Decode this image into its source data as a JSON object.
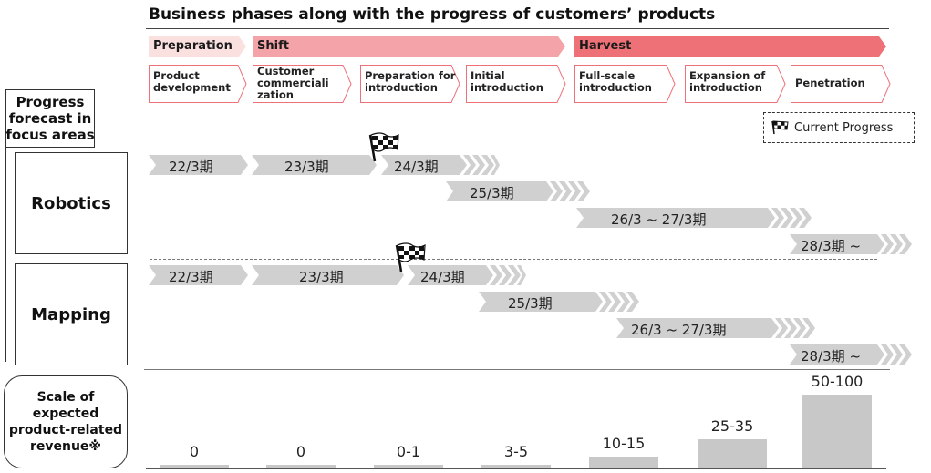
{
  "title": "Business phases along with the progress of customers’ products",
  "phases": {
    "preparation": "Preparation",
    "shift": "Shift",
    "harvest": "Harvest"
  },
  "steps": [
    "Product\ndevelopment",
    "Customer\ncommerciali\nzation",
    "Preparation for\nintroduction",
    "Initial\nintroduction",
    "Full-scale\nintroduction",
    "Expansion of\nintroduction",
    "Penetration"
  ],
  "legend": {
    "label": "Current Progress",
    "icon": "checkered-flag-icon"
  },
  "left": {
    "forecast_label": "Progress\nforecast in\nfocus areas",
    "robotics": "Robotics",
    "mapping": "Mapping",
    "revenue_label": "Scale of\nexpected\nproduct-related\nrevenue※"
  },
  "robotics": {
    "periods": [
      "22/3期",
      "23/3期",
      "24/3期",
      "25/3期",
      "26/3 ~ 27/3期",
      "28/3期 ~"
    ]
  },
  "mapping": {
    "periods": [
      "22/3期",
      "23/3期",
      "24/3期",
      "25/3期",
      "26/3 ~ 27/3期",
      "28/3期 ~"
    ]
  },
  "revenue": {
    "labels": [
      "0",
      "0",
      "0-1",
      "3-5",
      "10-15",
      "25-35",
      "50-100"
    ],
    "levels": [
      0,
      0,
      1,
      4,
      12.5,
      30,
      75
    ]
  },
  "colors": {
    "preparation": "#fbe0e0",
    "shift": "#f4a3a8",
    "harvest": "#ee7178",
    "step_border": "#ee7178",
    "timeline": "#d0d0d0",
    "revenue_bar": "#c8c8c8"
  }
}
